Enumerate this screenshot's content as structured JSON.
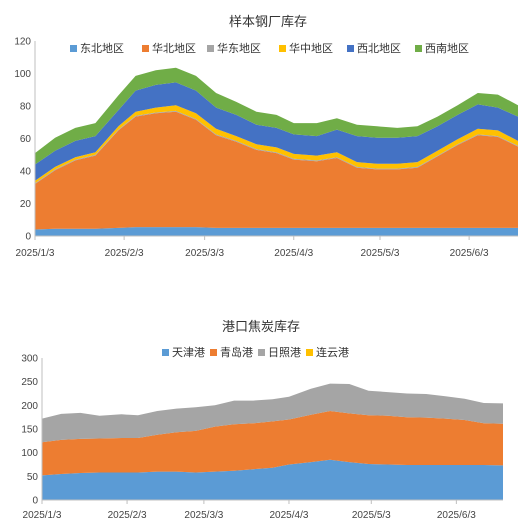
{
  "chart_data": [
    {
      "type": "area",
      "stacked": true,
      "title": "样本钢厂库存",
      "xlabel": "",
      "ylabel": "",
      "ylim": [
        0,
        120
      ],
      "yticks": [
        0,
        20,
        40,
        60,
        80,
        100,
        120
      ],
      "x_tick_labels": [
        "2025/1/3",
        "2025/2/3",
        "2025/3/3",
        "2025/4/3",
        "2025/5/3",
        "2025/6/3"
      ],
      "x": [
        "2025/1/3",
        "2025/1/10",
        "2025/1/17",
        "2025/1/24",
        "2025/2/1",
        "2025/2/7",
        "2025/2/14",
        "2025/2/21",
        "2025/2/28",
        "2025/3/7",
        "2025/3/14",
        "2025/3/21",
        "2025/3/28",
        "2025/4/3",
        "2025/4/11",
        "2025/4/18",
        "2025/4/25",
        "2025/5/2",
        "2025/5/9",
        "2025/5/16",
        "2025/5/23",
        "2025/5/30",
        "2025/6/6",
        "2025/6/13",
        "2025/6/20"
      ],
      "legend_position": "top",
      "grid": false,
      "colors": [
        "#5b9bd5",
        "#ed7d31",
        "#a5a5a5",
        "#ffc000",
        "#4472c4",
        "#70ad47"
      ],
      "series": [
        {
          "name": "东北地区",
          "values": [
            4,
            4.5,
            4.5,
            4.5,
            5,
            5.5,
            5.5,
            5.5,
            5.5,
            5,
            5,
            5,
            5,
            5,
            5,
            5,
            5,
            5,
            5,
            5,
            5,
            5,
            5,
            5,
            5
          ]
        },
        {
          "name": "华北地区",
          "values": [
            28,
            36,
            42,
            45,
            60,
            68,
            70,
            71,
            66,
            57,
            53,
            48,
            46,
            42,
            41,
            43,
            37,
            36,
            36,
            37,
            44,
            51,
            57,
            56,
            50
          ]
        },
        {
          "name": "华东地区",
          "values": [
            0.5,
            0.5,
            0.5,
            0.5,
            0.5,
            0.5,
            0.5,
            0.5,
            0.5,
            0.5,
            0.5,
            0.5,
            0.5,
            0.5,
            0.5,
            0.5,
            0.5,
            0.5,
            0.5,
            0.5,
            0.5,
            0.5,
            0.5,
            0.5,
            0.5
          ]
        },
        {
          "name": "华中地区",
          "values": [
            1.5,
            1.5,
            1.5,
            1.5,
            2,
            2.5,
            3,
            3.5,
            3.5,
            3.5,
            3,
            3,
            3,
            3,
            3,
            3,
            3,
            3,
            3,
            3,
            3,
            3,
            3.5,
            3.5,
            3
          ]
        },
        {
          "name": "西北地区",
          "values": [
            10,
            10,
            10,
            10,
            10,
            13,
            14,
            14,
            14,
            13,
            13,
            12,
            12,
            12,
            12,
            14,
            16,
            16,
            16,
            16,
            15,
            15,
            15,
            14,
            15
          ]
        },
        {
          "name": "西南地区",
          "values": [
            7,
            8,
            8,
            8,
            9,
            9,
            9,
            9,
            9,
            9,
            8,
            8,
            8,
            7,
            8,
            7,
            7,
            7,
            6,
            6,
            6,
            6,
            7,
            8,
            7
          ]
        }
      ]
    },
    {
      "type": "area",
      "stacked": true,
      "title": "港口焦炭库存",
      "xlabel": "",
      "ylabel": "",
      "ylim": [
        0,
        300
      ],
      "yticks": [
        0,
        50,
        100,
        150,
        200,
        250,
        300
      ],
      "x_tick_labels": [
        "2025/1/3",
        "2025/2/3",
        "2025/3/3",
        "2025/4/3",
        "2025/5/3",
        "2025/6/3"
      ],
      "x": [
        "2025/1/3",
        "2025/1/10",
        "2025/1/17",
        "2025/1/24",
        "2025/2/1",
        "2025/2/7",
        "2025/2/14",
        "2025/2/21",
        "2025/2/28",
        "2025/3/7",
        "2025/3/14",
        "2025/3/21",
        "2025/3/28",
        "2025/4/3",
        "2025/4/11",
        "2025/4/18",
        "2025/4/25",
        "2025/5/2",
        "2025/5/9",
        "2025/5/16",
        "2025/5/23",
        "2025/5/30",
        "2025/6/6",
        "2025/6/13",
        "2025/6/20"
      ],
      "legend_position": "top",
      "grid": false,
      "colors": [
        "#5b9bd5",
        "#ed7d31",
        "#a5a5a5",
        "#ffc000"
      ],
      "series": [
        {
          "name": "天津港",
          "values": [
            52,
            55,
            57,
            58,
            58,
            58,
            60,
            60,
            58,
            60,
            62,
            65,
            68,
            75,
            80,
            85,
            80,
            76,
            75,
            74,
            74,
            74,
            74,
            74,
            73
          ]
        },
        {
          "name": "青岛港",
          "values": [
            70,
            72,
            72,
            72,
            73,
            73,
            78,
            83,
            88,
            95,
            98,
            97,
            98,
            95,
            100,
            103,
            103,
            103,
            103,
            101,
            100,
            98,
            95,
            88,
            88
          ]
        },
        {
          "name": "日照港",
          "values": [
            50,
            55,
            55,
            48,
            50,
            48,
            50,
            50,
            50,
            45,
            50,
            48,
            47,
            48,
            55,
            58,
            62,
            52,
            50,
            50,
            50,
            47,
            45,
            43,
            43
          ]
        },
        {
          "name": "连云港",
          "values": [
            0,
            0,
            0,
            0,
            0,
            0,
            0,
            0,
            0,
            0,
            0,
            0,
            0,
            0,
            0,
            0,
            0,
            0,
            0,
            0,
            0,
            0,
            0,
            0,
            0
          ]
        }
      ]
    }
  ]
}
